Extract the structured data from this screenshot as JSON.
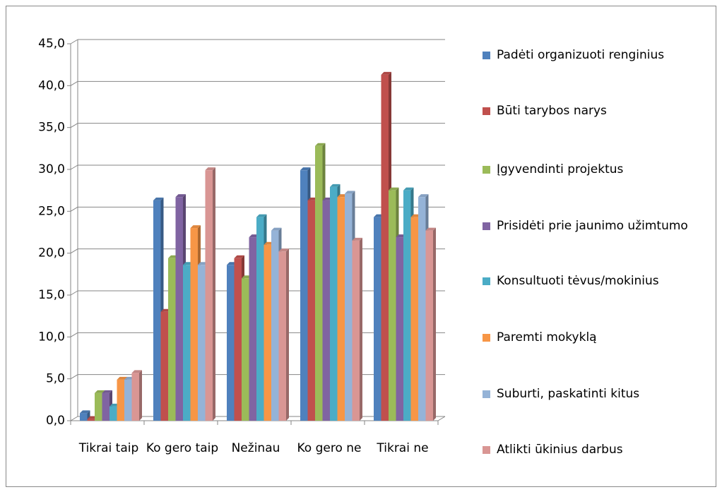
{
  "chart_data": {
    "type": "bar",
    "categories": [
      "Tikrai taip",
      "Ko gero taip",
      "Nežinau",
      "Ko gero ne",
      "Tikrai ne"
    ],
    "series": [
      {
        "name": "Padėti organizuoti renginius",
        "color": "#4f81bd",
        "values": [
          0.9,
          26.3,
          18.6,
          29.9,
          24.3
        ]
      },
      {
        "name": "Būti tarybos narys",
        "color": "#c0504d",
        "values": [
          0.2,
          13.0,
          19.4,
          26.3,
          41.3
        ]
      },
      {
        "name": "Įgyvendinti projektus",
        "color": "#9bbb59",
        "values": [
          3.3,
          19.4,
          17.0,
          32.8,
          27.5
        ]
      },
      {
        "name": "Prisidėti prie jaunimo užimtumo",
        "color": "#8064a2",
        "values": [
          3.3,
          26.7,
          21.9,
          26.3,
          21.9
        ]
      },
      {
        "name": "Konsultuoti tėvus/mokinius",
        "color": "#4bacc6",
        "values": [
          1.7,
          18.6,
          24.3,
          27.9,
          27.5
        ]
      },
      {
        "name": "Paremti mokyklą",
        "color": "#f79646",
        "values": [
          4.9,
          23.0,
          21.0,
          26.7,
          24.3
        ]
      },
      {
        "name": "Suburti, paskatinti kitus",
        "color": "#95b3d7",
        "values": [
          4.9,
          18.6,
          22.7,
          27.1,
          26.7
        ]
      },
      {
        "name": "Atlikti ūkinius darbus",
        "color": "#d99694",
        "values": [
          5.7,
          29.9,
          20.2,
          21.5,
          22.7
        ]
      }
    ],
    "ylim": [
      0,
      45
    ],
    "yticks": [
      {
        "value": 0,
        "label": "0,0"
      },
      {
        "value": 5,
        "label": "5,0"
      },
      {
        "value": 10,
        "label": "10,0"
      },
      {
        "value": 15,
        "label": "15,0"
      },
      {
        "value": 20,
        "label": "20,0"
      },
      {
        "value": 25,
        "label": "25,0"
      },
      {
        "value": 30,
        "label": "30,0"
      },
      {
        "value": 35,
        "label": "35,0"
      },
      {
        "value": 40,
        "label": "40,0"
      },
      {
        "value": 45,
        "label": "45,0"
      }
    ],
    "grid": true,
    "legend": "right"
  }
}
